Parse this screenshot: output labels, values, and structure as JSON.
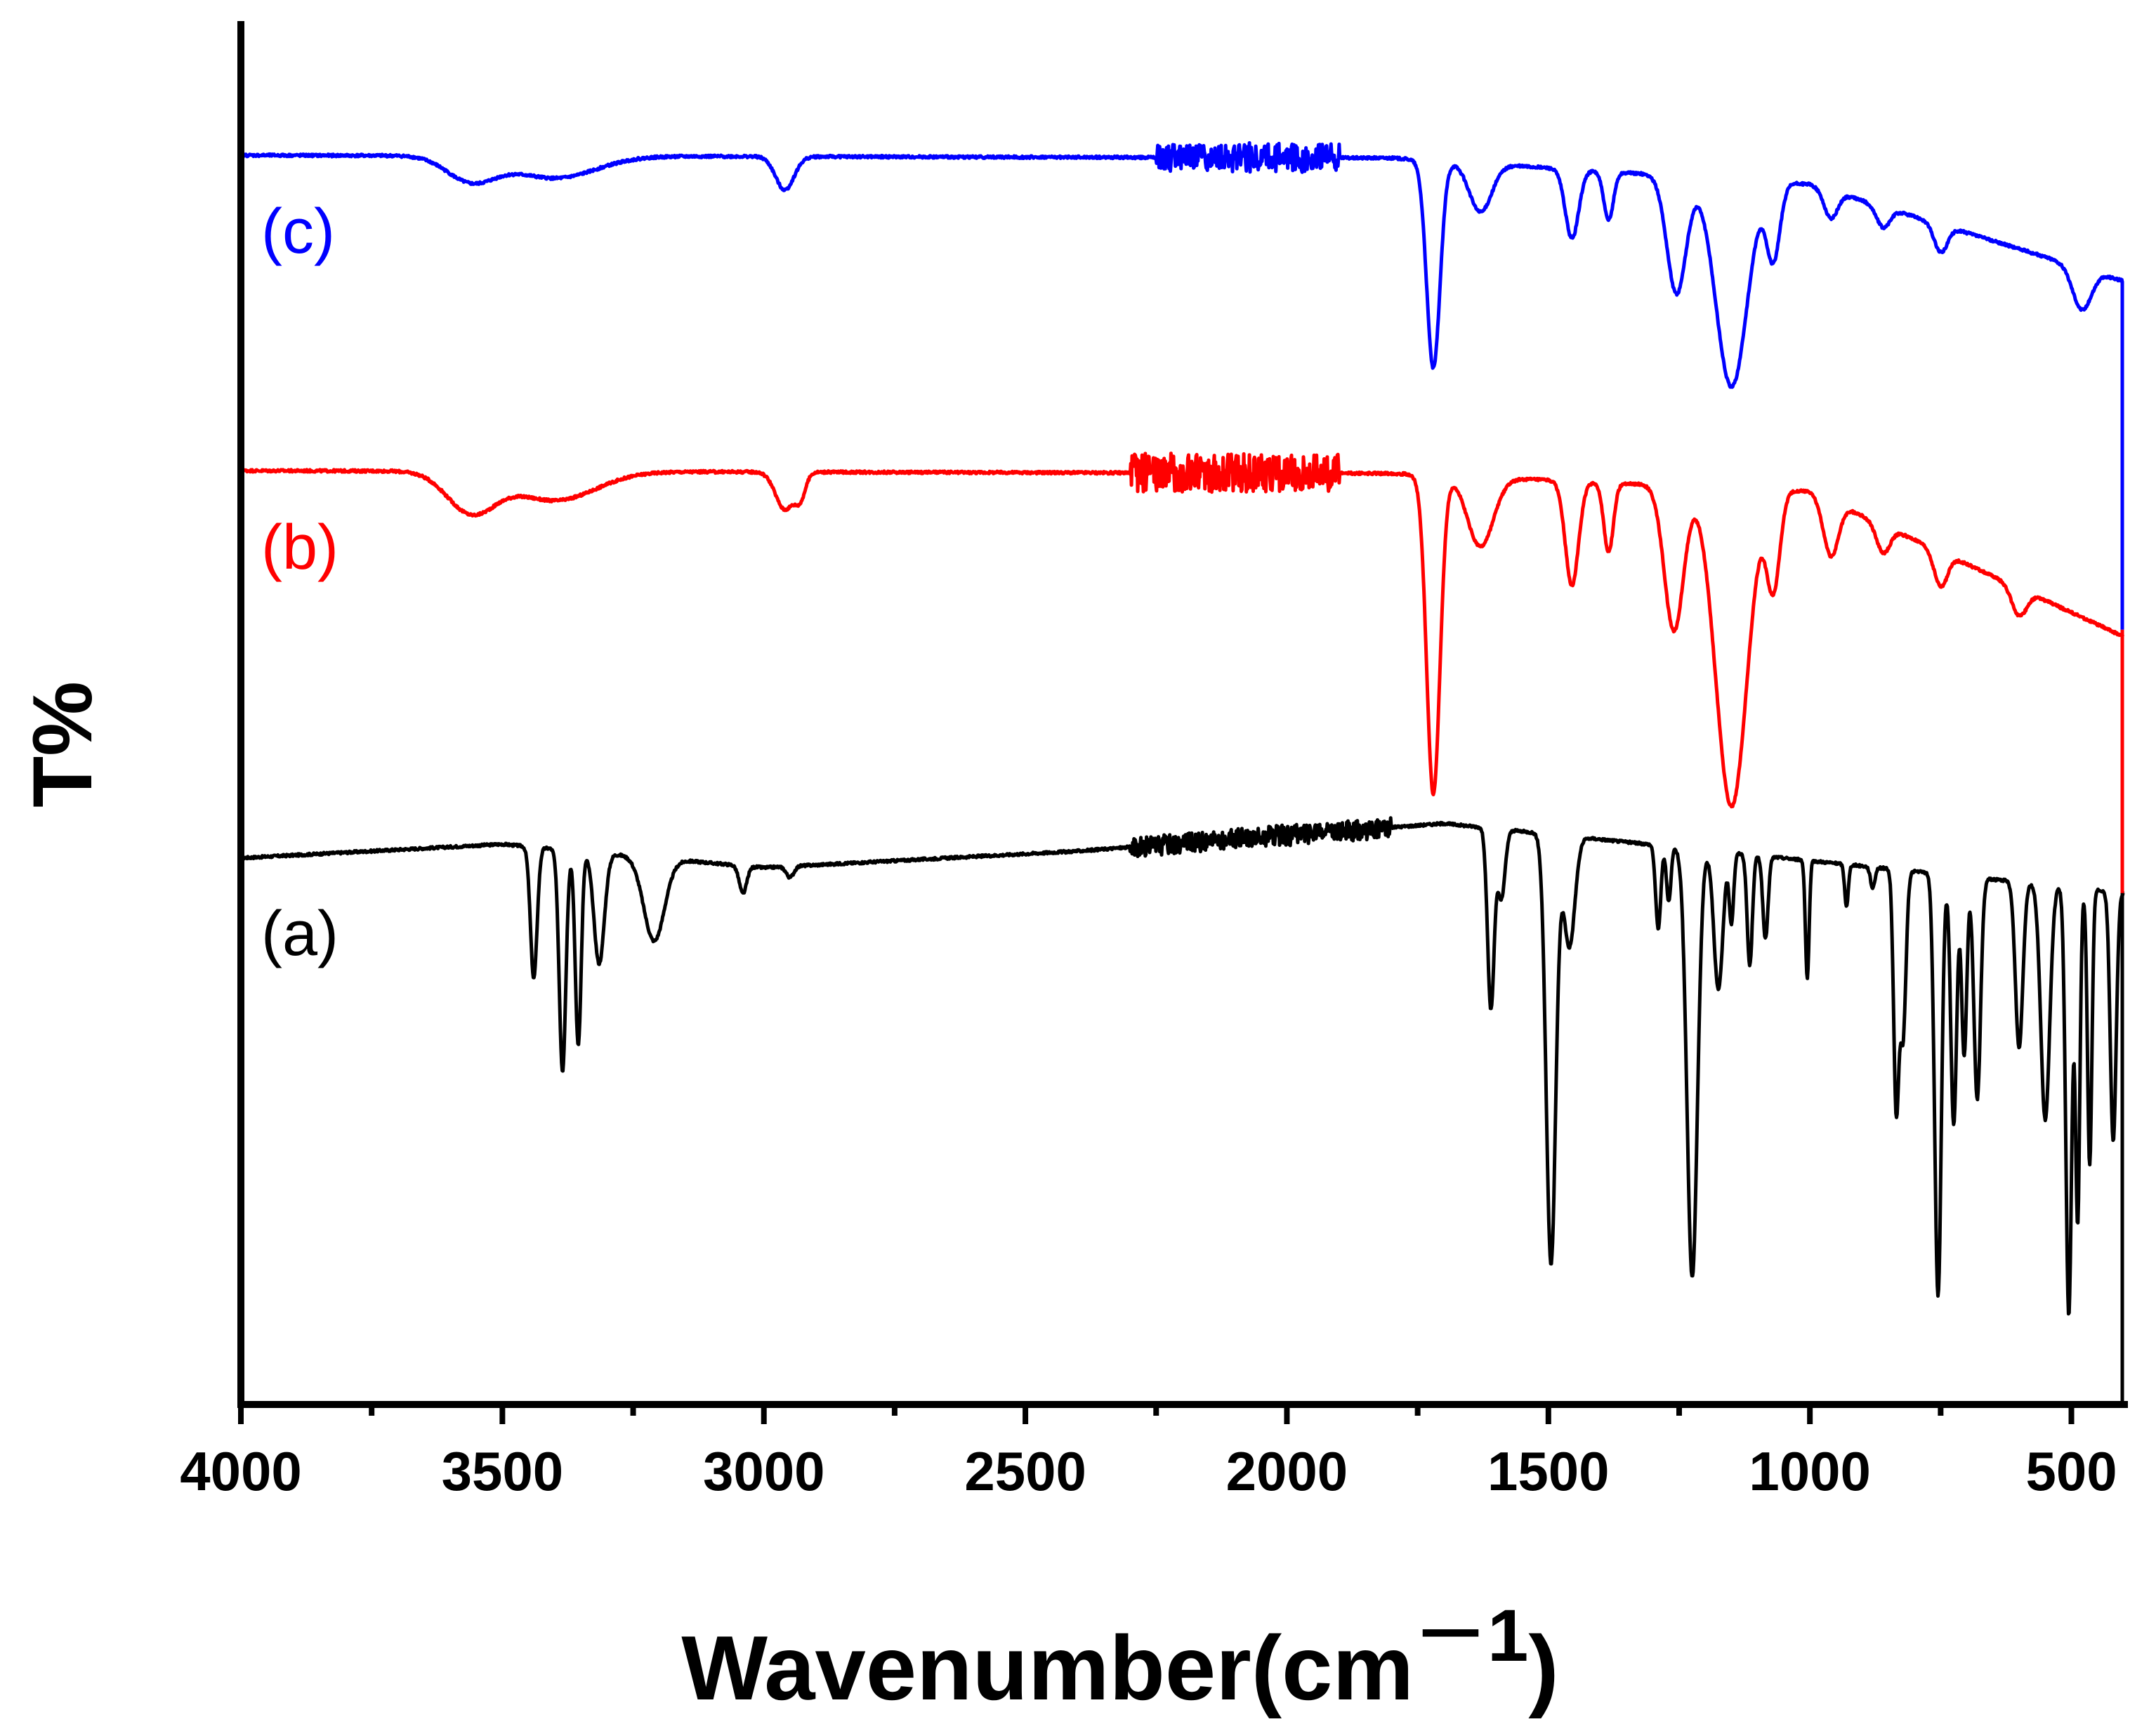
{
  "chart_data": {
    "type": "line",
    "title": "",
    "xlabel": "Wavenumber(cm",
    "xlabel_sup": "－1",
    "xlabel_close": ")",
    "ylabel": "T%",
    "xlim": [
      4000,
      400
    ],
    "x_reversed": true,
    "ylim": [
      0,
      100
    ],
    "y_ticks_shown": false,
    "grid": false,
    "xticks": [
      4000,
      3500,
      3000,
      2500,
      2000,
      1500,
      1000,
      500
    ],
    "xtick_labels": [
      "4000",
      "3500",
      "3000",
      "2500",
      "2000",
      "1500",
      "1000",
      "500"
    ],
    "minor_xticks": [
      3750,
      3250,
      2750,
      2250,
      1750,
      1250,
      750
    ],
    "series": [
      {
        "name": "(a)",
        "label": "(a)",
        "color": "#000000",
        "baseline": 39.5,
        "start_x": 4000,
        "end_x": 400,
        "noise": {
          "from": 2300,
          "to": 1800,
          "amp": 0.7
        },
        "ramps": [
          {
            "x": [
              4000,
              3500
            ],
            "y": [
              39.5,
              40.5
            ]
          },
          {
            "x": [
              3500,
              3000
            ],
            "y": [
              40.5,
              38.8
            ]
          },
          {
            "x": [
              3000,
              2400
            ],
            "y": [
              38.8,
              40.0
            ]
          },
          {
            "x": [
              2400,
              1700
            ],
            "y": [
              40.0,
              42.0
            ]
          },
          {
            "x": [
              1700,
              400
            ],
            "y": [
              42.0,
              37.0
            ]
          }
        ],
        "peaks": [
          {
            "x": 3440,
            "depth": 9.5,
            "width": 9
          },
          {
            "x": 3385,
            "depth": 16,
            "width": 9
          },
          {
            "x": 3355,
            "depth": 14,
            "width": 8
          },
          {
            "x": 3315,
            "depth": 8,
            "width": 14
          },
          {
            "x": 3210,
            "depth": 6,
            "width": 28
          },
          {
            "x": 3040,
            "depth": 2,
            "width": 10
          },
          {
            "x": 2950,
            "depth": 0.8,
            "width": 10
          },
          {
            "x": 1610,
            "depth": 13,
            "width": 9
          },
          {
            "x": 1590,
            "depth": 5,
            "width": 10
          },
          {
            "x": 1495,
            "depth": 31,
            "width": 13
          },
          {
            "x": 1460,
            "depth": 8,
            "width": 15
          },
          {
            "x": 1290,
            "depth": 6,
            "width": 7
          },
          {
            "x": 1270,
            "depth": 4,
            "width": 6
          },
          {
            "x": 1225,
            "depth": 31,
            "width": 14
          },
          {
            "x": 1175,
            "depth": 10,
            "width": 12
          },
          {
            "x": 1150,
            "depth": 5,
            "width": 6
          },
          {
            "x": 1115,
            "depth": 8,
            "width": 7
          },
          {
            "x": 1085,
            "depth": 6,
            "width": 7
          },
          {
            "x": 1005,
            "depth": 8.5,
            "width": 5
          },
          {
            "x": 930,
            "depth": 3,
            "width": 5
          },
          {
            "x": 880,
            "depth": 1.5,
            "width": 6
          },
          {
            "x": 835,
            "depth": 17,
            "width": 7
          },
          {
            "x": 822,
            "depth": 12,
            "width": 8
          },
          {
            "x": 755,
            "depth": 30.5,
            "width": 9
          },
          {
            "x": 725,
            "depth": 18,
            "width": 8
          },
          {
            "x": 705,
            "depth": 13,
            "width": 7
          },
          {
            "x": 680,
            "depth": 16,
            "width": 9
          },
          {
            "x": 600,
            "depth": 12,
            "width": 10
          },
          {
            "x": 550,
            "depth": 17,
            "width": 12
          },
          {
            "x": 505,
            "depth": 31,
            "width": 8
          },
          {
            "x": 488,
            "depth": 24,
            "width": 6
          },
          {
            "x": 465,
            "depth": 20,
            "width": 6
          },
          {
            "x": 420,
            "depth": 18,
            "width": 8
          }
        ]
      },
      {
        "name": "(b)",
        "label": "(b)",
        "color": "#ff0000",
        "baseline": 67.5,
        "start_x": 4000,
        "end_x": 400,
        "noise": {
          "from": 2300,
          "to": 1900,
          "amp": 1.4
        },
        "ramps": [
          {
            "x": [
              4000,
              1800
            ],
            "y": [
              67.5,
              67.3
            ]
          },
          {
            "x": [
              1800,
              1000
            ],
            "y": [
              67.3,
              66.0
            ]
          },
          {
            "x": [
              1000,
              400
            ],
            "y": [
              66.0,
              55.5
            ]
          }
        ],
        "peaks": [
          {
            "x": 3560,
            "depth": 2.9,
            "width": 65
          },
          {
            "x": 3400,
            "depth": 2.1,
            "width": 110
          },
          {
            "x": 2960,
            "depth": 2.7,
            "width": 25
          },
          {
            "x": 2930,
            "depth": 1.6,
            "width": 14
          },
          {
            "x": 1720,
            "depth": 23,
            "width": 18
          },
          {
            "x": 1630,
            "depth": 5,
            "width": 35
          },
          {
            "x": 1455,
            "depth": 7.5,
            "width": 18
          },
          {
            "x": 1385,
            "depth": 5,
            "width": 13
          },
          {
            "x": 1260,
            "depth": 10.5,
            "width": 26
          },
          {
            "x": 1150,
            "depth": 23,
            "width": 42
          },
          {
            "x": 1070,
            "depth": 7,
            "width": 18
          },
          {
            "x": 960,
            "depth": 4,
            "width": 20
          },
          {
            "x": 860,
            "depth": 2,
            "width": 18
          },
          {
            "x": 750,
            "depth": 2.5,
            "width": 18
          },
          {
            "x": 600,
            "depth": 2,
            "width": 20
          }
        ]
      },
      {
        "name": "(c)",
        "label": "(c)",
        "color": "#0000ff",
        "baseline": 90.3,
        "start_x": 4000,
        "end_x": 400,
        "noise": {
          "from": 2250,
          "to": 1900,
          "amp": 1.0
        },
        "ramps": [
          {
            "x": [
              4000,
              1800
            ],
            "y": [
              90.3,
              90.1
            ]
          },
          {
            "x": [
              1800,
              1000
            ],
            "y": [
              90.1,
              88.2
            ]
          },
          {
            "x": [
              1000,
              400
            ],
            "y": [
              88.2,
              81.2
            ]
          }
        ],
        "peaks": [
          {
            "x": 3560,
            "depth": 1.8,
            "width": 65
          },
          {
            "x": 3400,
            "depth": 1.6,
            "width": 110
          },
          {
            "x": 2960,
            "depth": 2.4,
            "width": 25
          },
          {
            "x": 1720,
            "depth": 15,
            "width": 18
          },
          {
            "x": 1630,
            "depth": 3.5,
            "width": 30
          },
          {
            "x": 1455,
            "depth": 5,
            "width": 18
          },
          {
            "x": 1385,
            "depth": 3.5,
            "width": 13
          },
          {
            "x": 1255,
            "depth": 8.5,
            "width": 26
          },
          {
            "x": 1150,
            "depth": 15,
            "width": 42
          },
          {
            "x": 1070,
            "depth": 5.5,
            "width": 18
          },
          {
            "x": 960,
            "depth": 2,
            "width": 18
          },
          {
            "x": 860,
            "depth": 1.5,
            "width": 18
          },
          {
            "x": 750,
            "depth": 2,
            "width": 18
          },
          {
            "x": 480,
            "depth": 3,
            "width": 25
          }
        ]
      }
    ],
    "label_colors": {
      "(a)": "#000000",
      "(b)": "#ff0000",
      "(c)": "#0000ff"
    }
  }
}
